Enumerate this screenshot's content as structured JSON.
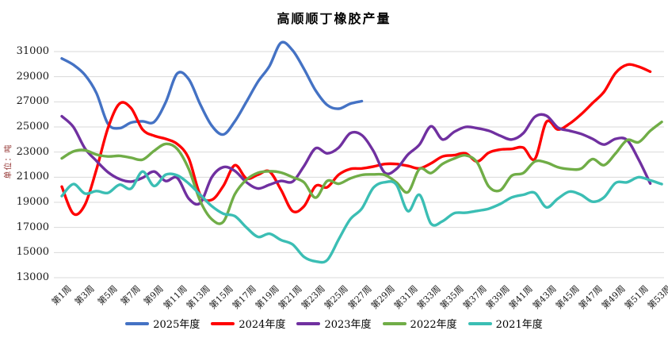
{
  "title": "高顺顺丁橡胶产量",
  "y_axis_title": "单位：吨",
  "chart_data": {
    "type": "line",
    "title": "高顺顺丁橡胶产量",
    "ylabel": "单位：吨",
    "xlabel": "",
    "ylim": [
      13000,
      31000
    ],
    "ytick_interval": 2000,
    "yticks": [
      31000,
      29000,
      27000,
      25000,
      23000,
      21000,
      19000,
      17000,
      15000,
      13000
    ],
    "weeks_total": 53,
    "xtick_labels": [
      "第1周",
      "第3周",
      "第5周",
      "第7周",
      "第9周",
      "第11周",
      "第13周",
      "第15周",
      "第17周",
      "第19周",
      "第21周",
      "第23周",
      "第25周",
      "第27周",
      "第29周",
      "第31周",
      "第33周",
      "第35周",
      "第37周",
      "第39周",
      "第41周",
      "第43周",
      "第45周",
      "第47周",
      "第49周",
      "第51周",
      "第53周"
    ],
    "grid": "horizontal",
    "grid_color": "#d9d9d9",
    "legend_position": "bottom",
    "axis_text_color": "#1a1a1a",
    "series": [
      {
        "name": "2025年度",
        "color": "#4472c4",
        "start_week": 1,
        "values": [
          30450,
          29950,
          29150,
          27700,
          25250,
          24900,
          25350,
          25450,
          25400,
          26950,
          29250,
          28800,
          26800,
          25100,
          24400,
          25450,
          27000,
          28600,
          29850,
          31700,
          31100,
          29600,
          27900,
          26750,
          26450,
          26850,
          27050
        ]
      },
      {
        "name": "2024年度",
        "color": "#ff0000",
        "start_week": 1,
        "values": [
          20250,
          18100,
          18800,
          21600,
          24900,
          26850,
          26500,
          24800,
          24300,
          24050,
          23650,
          22500,
          19600,
          19200,
          20300,
          21950,
          20900,
          21200,
          21450,
          20000,
          18300,
          18700,
          20300,
          20200,
          21200,
          21650,
          21700,
          21850,
          22050,
          22050,
          21900,
          21700,
          22100,
          22650,
          22750,
          22900,
          22250,
          22950,
          23200,
          23250,
          23350,
          22450,
          25400,
          24800,
          25250,
          26000,
          26900,
          27800,
          29300,
          29950,
          29800,
          29400
        ]
      },
      {
        "name": "2023年度",
        "color": "#7030a0",
        "start_week": 1,
        "values": [
          25850,
          25000,
          23300,
          22300,
          21400,
          20850,
          20650,
          20950,
          21450,
          20700,
          20950,
          19300,
          18950,
          21000,
          21800,
          21500,
          20600,
          20100,
          20400,
          20700,
          20650,
          21900,
          23300,
          22900,
          23350,
          24500,
          24350,
          23100,
          21350,
          21650,
          22800,
          23600,
          25050,
          24000,
          24600,
          25000,
          24900,
          24700,
          24300,
          24000,
          24500,
          25800,
          25900,
          24950,
          24700,
          24450,
          24050,
          23600,
          24050,
          23950,
          22400,
          20500
        ]
      },
      {
        "name": "2022年度",
        "color": "#70ad47",
        "start_week": 1,
        "values": [
          22500,
          23050,
          23150,
          22800,
          22650,
          22700,
          22550,
          22400,
          23100,
          23650,
          23250,
          21650,
          19100,
          17650,
          17450,
          19650,
          20800,
          21350,
          21470,
          21370,
          21000,
          20580,
          19370,
          20700,
          20480,
          20900,
          21180,
          21220,
          21180,
          20590,
          19810,
          21650,
          21330,
          22060,
          22480,
          22740,
          22170,
          20270,
          19960,
          21120,
          21330,
          22250,
          22170,
          21790,
          21640,
          21680,
          22440,
          21960,
          22900,
          23950,
          23790,
          24690,
          25400
        ]
      },
      {
        "name": "2021年度",
        "color": "#3bbeb4",
        "start_week": 1,
        "values": [
          19500,
          20450,
          19700,
          19900,
          19750,
          20400,
          20100,
          21450,
          20300,
          21200,
          21150,
          20500,
          19600,
          18700,
          18100,
          17900,
          17000,
          16250,
          16500,
          16000,
          15650,
          14650,
          14300,
          14400,
          16050,
          17650,
          18500,
          20150,
          20600,
          20400,
          18300,
          19600,
          17300,
          17500,
          18130,
          18170,
          18320,
          18490,
          18870,
          19390,
          19600,
          19750,
          18600,
          19300,
          19850,
          19600,
          19050,
          19400,
          20550,
          20600,
          21000,
          20750,
          20450
        ]
      }
    ]
  }
}
